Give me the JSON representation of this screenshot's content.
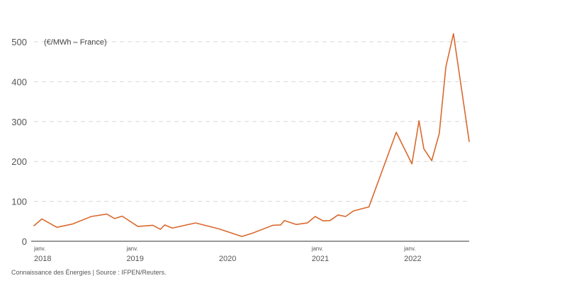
{
  "chart_data": {
    "type": "line",
    "unit_label": "(€/MWh – France)",
    "source": "Connaissance des Énergies | Source : IFPEN/Reuters.",
    "ylim": [
      0,
      500
    ],
    "yticks": [
      0,
      100,
      200,
      300,
      400,
      500
    ],
    "grid": "horizontal dashed",
    "xlim": [
      "2018-01-01",
      "2022-09-15"
    ],
    "xticks": [
      {
        "date": "2018-01-01",
        "month": "janv.",
        "year": "2018"
      },
      {
        "date": "2019-01-01",
        "month": "janv.",
        "year": "2019"
      },
      {
        "date": "2020-01-01",
        "month": "",
        "year": "2020"
      },
      {
        "date": "2021-01-01",
        "month": "janv.",
        "year": "2021"
      },
      {
        "date": "2022-01-01",
        "month": "janv.",
        "year": "2022"
      }
    ],
    "series": [
      {
        "color": "#d9692e",
        "points": [
          [
            "2018-01-01",
            39
          ],
          [
            "2018-02-01",
            56
          ],
          [
            "2018-04-01",
            35
          ],
          [
            "2018-06-01",
            43
          ],
          [
            "2018-08-15",
            62
          ],
          [
            "2018-10-15",
            68
          ],
          [
            "2018-11-15",
            57
          ],
          [
            "2018-12-15",
            63
          ],
          [
            "2019-02-15",
            37
          ],
          [
            "2019-04-15",
            40
          ],
          [
            "2019-05-15",
            30
          ],
          [
            "2019-06-01",
            41
          ],
          [
            "2019-07-01",
            33
          ],
          [
            "2019-10-01",
            46
          ],
          [
            "2020-01-01",
            31
          ],
          [
            "2020-04-01",
            12
          ],
          [
            "2020-05-15",
            21
          ],
          [
            "2020-08-01",
            40
          ],
          [
            "2020-09-01",
            41
          ],
          [
            "2020-09-15",
            52
          ],
          [
            "2020-11-01",
            42
          ],
          [
            "2020-12-15",
            46
          ],
          [
            "2021-01-15",
            62
          ],
          [
            "2021-02-15",
            51
          ],
          [
            "2021-03-15",
            52
          ],
          [
            "2021-04-15",
            66
          ],
          [
            "2021-05-15",
            62
          ],
          [
            "2021-06-15",
            76
          ],
          [
            "2021-08-15",
            86
          ],
          [
            "2021-12-01",
            273
          ],
          [
            "2022-02-01",
            194
          ],
          [
            "2022-03-01",
            302
          ],
          [
            "2022-03-20",
            232
          ],
          [
            "2022-04-20",
            202
          ],
          [
            "2022-05-20",
            270
          ],
          [
            "2022-06-15",
            437
          ],
          [
            "2022-07-15",
            520
          ],
          [
            "2022-09-15",
            250
          ]
        ]
      }
    ]
  }
}
